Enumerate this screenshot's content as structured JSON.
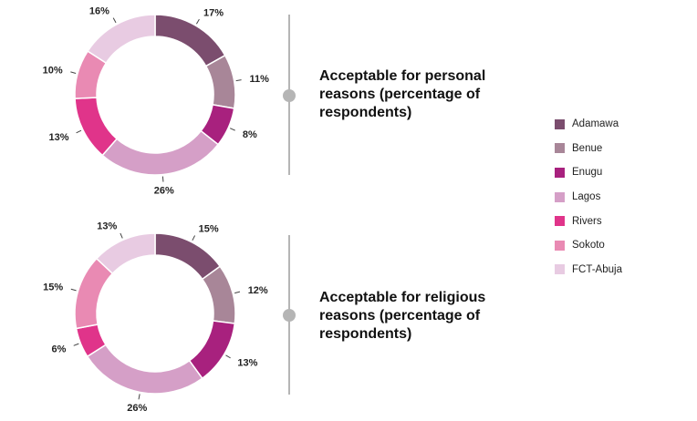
{
  "chart_data": [
    {
      "type": "pie",
      "title": "Acceptable for personal reasons (percentage of respondents)",
      "categories": [
        "Adamawa",
        "Benue",
        "Enugu",
        "Lagos",
        "Rivers",
        "Sokoto",
        "FCT-Abuja"
      ],
      "values": [
        17,
        11,
        8,
        26,
        13,
        10,
        16
      ],
      "labels": [
        "17%",
        "11%",
        "8%",
        "26%",
        "13%",
        "10%",
        "16%"
      ]
    },
    {
      "type": "pie",
      "title": "Acceptable for religious reasons (percentage of respondents)",
      "categories": [
        "Adamawa",
        "Benue",
        "Enugu",
        "Lagos",
        "Rivers",
        "Sokoto",
        "FCT-Abuja"
      ],
      "values": [
        15,
        12,
        13,
        26,
        6,
        15,
        13
      ],
      "labels": [
        "15%",
        "12%",
        "13%",
        "26%",
        "6%",
        "15%",
        "13%"
      ]
    }
  ],
  "legend": [
    {
      "label": "Adamawa",
      "color": "#7b4d6e"
    },
    {
      "label": "Benue",
      "color": "#a88698"
    },
    {
      "label": "Enugu",
      "color": "#a8217e"
    },
    {
      "label": "Lagos",
      "color": "#d59fc7"
    },
    {
      "label": "Rivers",
      "color": "#e0348a"
    },
    {
      "label": "Sokoto",
      "color": "#e98ab3"
    },
    {
      "label": "FCT-Abuja",
      "color": "#e8cbe2"
    }
  ],
  "colors": [
    "#7b4d6e",
    "#a88698",
    "#a8217e",
    "#d59fc7",
    "#e0348a",
    "#e98ab3",
    "#e8cbe2"
  ],
  "divider_color": "#b5b5b5"
}
